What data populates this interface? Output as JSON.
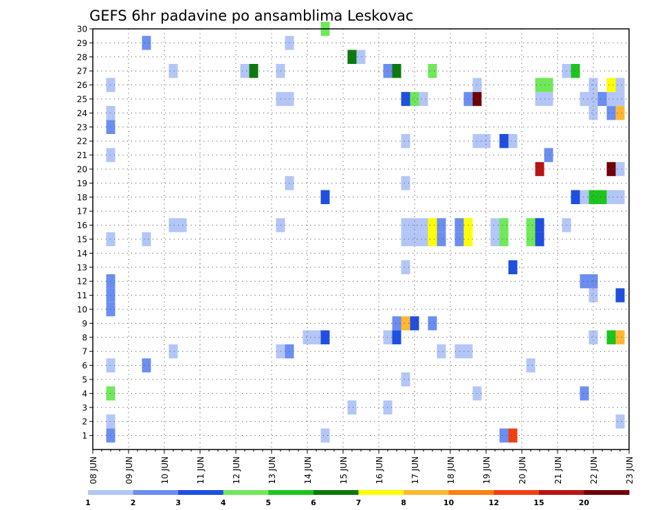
{
  "chart_data": {
    "type": "heatmap",
    "title": "GEFS 6hr padavine po ansamblima Leskovac",
    "xlabel": "",
    "ylabel": "",
    "x_range": [
      0,
      15
    ],
    "x_tick_labels": [
      "08 JUN",
      "09 JUN",
      "10 JUN",
      "11 JUN",
      "12 JUN",
      "13 JUN",
      "14 JUN",
      "15 JUN",
      "16 JUN",
      "17 JUN",
      "18 JUN",
      "19 JUN",
      "20 JUN",
      "21 JUN",
      "22 JUN",
      "23 JUN"
    ],
    "y_range": [
      0,
      30
    ],
    "y_tick_labels": [
      "1",
      "2",
      "3",
      "4",
      "5",
      "6",
      "7",
      "8",
      "9",
      "10",
      "11",
      "12",
      "13",
      "14",
      "15",
      "16",
      "17",
      "18",
      "19",
      "20",
      "21",
      "22",
      "23",
      "24",
      "25",
      "26",
      "27",
      "28",
      "29",
      "30"
    ],
    "grid": true,
    "legend": {
      "placement": "bottom",
      "boundaries": [
        "1",
        "2",
        "3",
        "4",
        "5",
        "6",
        "7",
        "8",
        "10",
        "12",
        "15",
        "20"
      ],
      "colors": [
        "#b3c6f7",
        "#6b8ef0",
        "#1f4fe0",
        "#6fe85a",
        "#1ec41e",
        "#0b7a0b",
        "#ffff00",
        "#ffb830",
        "#ff8010",
        "#f04010",
        "#b81414",
        "#6e0008"
      ]
    },
    "cells": [
      {
        "t": 0.5,
        "m": 1,
        "c": 1
      },
      {
        "t": 0.5,
        "m": 2,
        "c": 0
      },
      {
        "t": 0.5,
        "m": 4,
        "c": 3
      },
      {
        "t": 0.5,
        "m": 6,
        "c": 0
      },
      {
        "t": 0.5,
        "m": 10,
        "c": 1
      },
      {
        "t": 0.5,
        "m": 11,
        "c": 1
      },
      {
        "t": 0.5,
        "m": 12,
        "c": 1
      },
      {
        "t": 0.5,
        "m": 15,
        "c": 0
      },
      {
        "t": 0.5,
        "m": 21,
        "c": 0
      },
      {
        "t": 0.5,
        "m": 23,
        "c": 1
      },
      {
        "t": 0.5,
        "m": 24,
        "c": 0
      },
      {
        "t": 0.5,
        "m": 26,
        "c": 0
      },
      {
        "t": 1.5,
        "m": 6,
        "c": 1
      },
      {
        "t": 1.5,
        "m": 15,
        "c": 0
      },
      {
        "t": 1.5,
        "m": 29,
        "c": 1
      },
      {
        "t": 2.25,
        "m": 7,
        "c": 0
      },
      {
        "t": 2.25,
        "m": 16,
        "c": 0
      },
      {
        "t": 2.5,
        "m": 16,
        "c": 0
      },
      {
        "t": 2.25,
        "m": 27,
        "c": 0
      },
      {
        "t": 4.25,
        "m": 27,
        "c": 0
      },
      {
        "t": 4.5,
        "m": 27,
        "c": 5
      },
      {
        "t": 5.25,
        "m": 7,
        "c": 0
      },
      {
        "t": 5.25,
        "m": 16,
        "c": 0
      },
      {
        "t": 5.25,
        "m": 25,
        "c": 0
      },
      {
        "t": 5.25,
        "m": 27,
        "c": 0
      },
      {
        "t": 5.5,
        "m": 7,
        "c": 1
      },
      {
        "t": 5.5,
        "m": 19,
        "c": 0
      },
      {
        "t": 5.5,
        "m": 25,
        "c": 0
      },
      {
        "t": 5.5,
        "m": 29,
        "c": 0
      },
      {
        "t": 6.0,
        "m": 8,
        "c": 0
      },
      {
        "t": 6.25,
        "m": 8,
        "c": 0
      },
      {
        "t": 6.5,
        "m": 1,
        "c": 0
      },
      {
        "t": 6.5,
        "m": 8,
        "c": 2
      },
      {
        "t": 6.5,
        "m": 18,
        "c": 2
      },
      {
        "t": 6.5,
        "m": 30,
        "c": 3
      },
      {
        "t": 7.25,
        "m": 3,
        "c": 0
      },
      {
        "t": 7.25,
        "m": 28,
        "c": 5
      },
      {
        "t": 7.5,
        "m": 28,
        "c": 0
      },
      {
        "t": 8.25,
        "m": 3,
        "c": 0
      },
      {
        "t": 8.25,
        "m": 8,
        "c": 0
      },
      {
        "t": 8.25,
        "m": 27,
        "c": 1
      },
      {
        "t": 8.5,
        "m": 8,
        "c": 2
      },
      {
        "t": 8.5,
        "m": 9,
        "c": 1
      },
      {
        "t": 8.5,
        "m": 27,
        "c": 5
      },
      {
        "t": 8.75,
        "m": 5,
        "c": 0
      },
      {
        "t": 8.75,
        "m": 9,
        "c": 7
      },
      {
        "t": 8.75,
        "m": 13,
        "c": 0
      },
      {
        "t": 8.75,
        "m": 15,
        "c": 0
      },
      {
        "t": 8.75,
        "m": 16,
        "c": 0
      },
      {
        "t": 8.75,
        "m": 19,
        "c": 0
      },
      {
        "t": 8.75,
        "m": 22,
        "c": 0
      },
      {
        "t": 8.75,
        "m": 25,
        "c": 2
      },
      {
        "t": 9.0,
        "m": 9,
        "c": 2
      },
      {
        "t": 9.0,
        "m": 15,
        "c": 0
      },
      {
        "t": 9.0,
        "m": 16,
        "c": 0
      },
      {
        "t": 9.0,
        "m": 25,
        "c": 3
      },
      {
        "t": 9.25,
        "m": 15,
        "c": 0
      },
      {
        "t": 9.25,
        "m": 16,
        "c": 0
      },
      {
        "t": 9.25,
        "m": 25,
        "c": 0
      },
      {
        "t": 9.5,
        "m": 9,
        "c": 1
      },
      {
        "t": 9.5,
        "m": 15,
        "c": 6
      },
      {
        "t": 9.5,
        "m": 16,
        "c": 6
      },
      {
        "t": 9.5,
        "m": 27,
        "c": 3
      },
      {
        "t": 9.75,
        "m": 7,
        "c": 0
      },
      {
        "t": 9.75,
        "m": 15,
        "c": 1
      },
      {
        "t": 9.75,
        "m": 16,
        "c": 1
      },
      {
        "t": 10.25,
        "m": 7,
        "c": 0
      },
      {
        "t": 10.25,
        "m": 15,
        "c": 1
      },
      {
        "t": 10.25,
        "m": 16,
        "c": 1
      },
      {
        "t": 10.5,
        "m": 7,
        "c": 0
      },
      {
        "t": 10.5,
        "m": 15,
        "c": 6
      },
      {
        "t": 10.5,
        "m": 16,
        "c": 6
      },
      {
        "t": 10.5,
        "m": 25,
        "c": 1
      },
      {
        "t": 10.75,
        "m": 4,
        "c": 0
      },
      {
        "t": 10.75,
        "m": 22,
        "c": 0
      },
      {
        "t": 10.75,
        "m": 25,
        "c": 11
      },
      {
        "t": 10.75,
        "m": 26,
        "c": 0
      },
      {
        "t": 11.0,
        "m": 22,
        "c": 0
      },
      {
        "t": 11.25,
        "m": 15,
        "c": 0
      },
      {
        "t": 11.25,
        "m": 16,
        "c": 0
      },
      {
        "t": 11.5,
        "m": 1,
        "c": 1
      },
      {
        "t": 11.5,
        "m": 15,
        "c": 3
      },
      {
        "t": 11.5,
        "m": 16,
        "c": 3
      },
      {
        "t": 11.5,
        "m": 22,
        "c": 2
      },
      {
        "t": 11.75,
        "m": 1,
        "c": 9
      },
      {
        "t": 11.75,
        "m": 13,
        "c": 2
      },
      {
        "t": 11.75,
        "m": 22,
        "c": 0
      },
      {
        "t": 12.25,
        "m": 6,
        "c": 0
      },
      {
        "t": 12.25,
        "m": 15,
        "c": 3
      },
      {
        "t": 12.25,
        "m": 16,
        "c": 3
      },
      {
        "t": 12.5,
        "m": 15,
        "c": 2
      },
      {
        "t": 12.5,
        "m": 16,
        "c": 2
      },
      {
        "t": 12.5,
        "m": 20,
        "c": 10
      },
      {
        "t": 12.5,
        "m": 25,
        "c": 0
      },
      {
        "t": 12.5,
        "m": 26,
        "c": 3
      },
      {
        "t": 12.75,
        "m": 21,
        "c": 1
      },
      {
        "t": 12.75,
        "m": 25,
        "c": 0
      },
      {
        "t": 12.75,
        "m": 26,
        "c": 3
      },
      {
        "t": 13.25,
        "m": 16,
        "c": 0
      },
      {
        "t": 13.25,
        "m": 27,
        "c": 0
      },
      {
        "t": 13.5,
        "m": 18,
        "c": 2
      },
      {
        "t": 13.5,
        "m": 27,
        "c": 4
      },
      {
        "t": 13.75,
        "m": 4,
        "c": 1
      },
      {
        "t": 13.75,
        "m": 12,
        "c": 1
      },
      {
        "t": 13.75,
        "m": 18,
        "c": 0
      },
      {
        "t": 13.75,
        "m": 25,
        "c": 0
      },
      {
        "t": 14.0,
        "m": 8,
        "c": 0
      },
      {
        "t": 14.0,
        "m": 11,
        "c": 0
      },
      {
        "t": 14.0,
        "m": 12,
        "c": 1
      },
      {
        "t": 14.0,
        "m": 18,
        "c": 4
      },
      {
        "t": 14.0,
        "m": 24,
        "c": 0
      },
      {
        "t": 14.0,
        "m": 25,
        "c": 0
      },
      {
        "t": 14.0,
        "m": 26,
        "c": 0
      },
      {
        "t": 14.25,
        "m": 18,
        "c": 4
      },
      {
        "t": 14.25,
        "m": 25,
        "c": 1
      },
      {
        "t": 14.5,
        "m": 8,
        "c": 4
      },
      {
        "t": 14.5,
        "m": 18,
        "c": 0
      },
      {
        "t": 14.5,
        "m": 20,
        "c": 11
      },
      {
        "t": 14.5,
        "m": 24,
        "c": 1
      },
      {
        "t": 14.5,
        "m": 25,
        "c": 0
      },
      {
        "t": 14.5,
        "m": 26,
        "c": 6
      },
      {
        "t": 14.75,
        "m": 2,
        "c": 0
      },
      {
        "t": 14.75,
        "m": 8,
        "c": 7
      },
      {
        "t": 14.75,
        "m": 11,
        "c": 2
      },
      {
        "t": 14.75,
        "m": 18,
        "c": 0
      },
      {
        "t": 14.75,
        "m": 20,
        "c": 0
      },
      {
        "t": 14.75,
        "m": 24,
        "c": 7
      },
      {
        "t": 14.75,
        "m": 25,
        "c": 0
      },
      {
        "t": 14.75,
        "m": 26,
        "c": 0
      }
    ]
  }
}
